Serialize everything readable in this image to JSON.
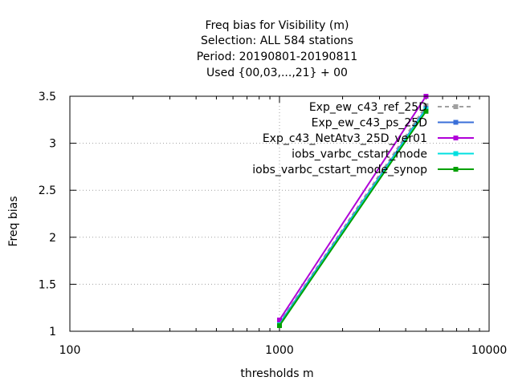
{
  "chart_data": {
    "type": "line",
    "title_lines": [
      "Freq bias  for Visibility (m)",
      "Selection: ALL    584 stations",
      "Period: 20190801-20190811",
      "Used {00,03,...,21} + 00"
    ],
    "xlabel": "thresholds m",
    "ylabel": "Freq bias",
    "x_scale": "log",
    "xlim": [
      100,
      10000
    ],
    "ylim": [
      1,
      3.5
    ],
    "x_ticks": [
      100,
      1000,
      10000
    ],
    "x_tick_labels": [
      "100",
      "1000",
      "10000"
    ],
    "y_ticks": [
      1,
      1.5,
      2,
      2.5,
      3,
      3.5
    ],
    "y_tick_labels": [
      "1",
      "1.5",
      "2",
      "2.5",
      "3",
      "3.5"
    ],
    "grid": true,
    "legend_position": "top-right",
    "series": [
      {
        "name": "Exp_ew_c43_ref_25D",
        "color": "#a0a0a0",
        "dashed": true,
        "x": [
          1000,
          5000
        ],
        "y": [
          1.09,
          3.4
        ]
      },
      {
        "name": "Exp_ew_c43_ps_25D",
        "color": "#3a6fd8",
        "dashed": false,
        "x": [
          1000,
          5000
        ],
        "y": [
          1.08,
          3.37
        ]
      },
      {
        "name": "Exp_c43_NetAtv3_25D_ver01",
        "color": "#b000d8",
        "dashed": false,
        "x": [
          1000,
          5000
        ],
        "y": [
          1.12,
          3.5
        ]
      },
      {
        "name": "iobs_varbc_cstart_mode",
        "color": "#00e0e0",
        "dashed": false,
        "x": [
          1000,
          5000
        ],
        "y": [
          1.07,
          3.36
        ]
      },
      {
        "name": "iobs_varbc_cstart_mode_synop",
        "color": "#00a000",
        "dashed": false,
        "x": [
          1000,
          5000
        ],
        "y": [
          1.06,
          3.34
        ]
      }
    ]
  }
}
